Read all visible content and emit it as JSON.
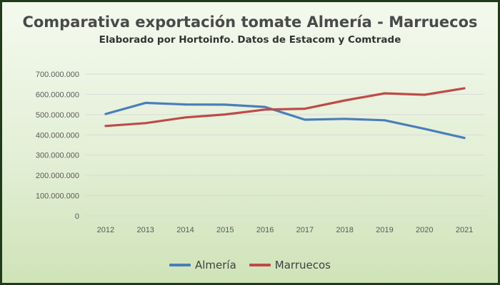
{
  "colors": {
    "almeria": "#4a7ebb",
    "marruecos": "#be4b48",
    "grid": "#d9d9d9"
  },
  "chart_data": {
    "type": "line",
    "title": "Comparativa exportación tomate Almería - Marruecos",
    "subtitle": "Elaborado por Hortoinfo. Datos de Estacom y Comtrade",
    "categories": [
      "2012",
      "2013",
      "2014",
      "2015",
      "2016",
      "2017",
      "2018",
      "2019",
      "2020",
      "2021"
    ],
    "y_tick_values": [
      0,
      100000000,
      200000000,
      300000000,
      400000000,
      500000000,
      600000000,
      700000000
    ],
    "y_tick_labels": [
      "0",
      "100.000.000",
      "200.000.000",
      "300.000.000",
      "400.000.000",
      "500.000.000",
      "600.000.000",
      "700.000.000"
    ],
    "ylim": [
      0,
      700000000
    ],
    "grid": true,
    "legend_position": "bottom",
    "series": [
      {
        "name": "Almería",
        "color": "#4a7ebb",
        "values": [
          503000000,
          558000000,
          550000000,
          549000000,
          538000000,
          475000000,
          479000000,
          472000000,
          430000000,
          385000000
        ]
      },
      {
        "name": "Marruecos",
        "color": "#be4b48",
        "values": [
          444000000,
          458000000,
          486000000,
          501000000,
          525000000,
          529000000,
          570000000,
          605000000,
          598000000,
          630000000
        ]
      }
    ]
  }
}
